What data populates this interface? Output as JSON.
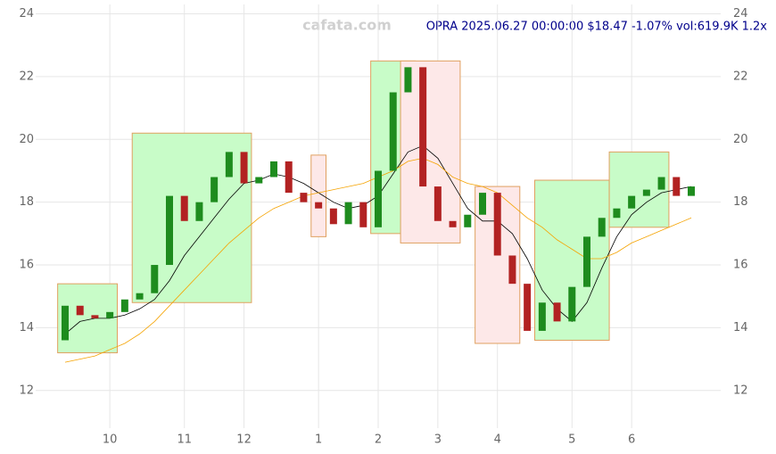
{
  "chart_data": {
    "type": "candlestick",
    "title": "OPRA 2025.06.27 00:00:00 $18.47 -1.07% vol:619.9K 1.2x",
    "watermark": "cafata.com",
    "categories": [
      null,
      null,
      null,
      "10",
      null,
      null,
      null,
      null,
      "11",
      null,
      null,
      null,
      "12",
      null,
      null,
      null,
      null,
      "1",
      null,
      null,
      null,
      "2",
      null,
      null,
      null,
      "3",
      null,
      null,
      null,
      "4",
      null,
      null,
      null,
      null,
      "5",
      null,
      null,
      null,
      "6",
      null,
      null,
      null,
      null
    ],
    "open": [
      13.6,
      14.7,
      14.4,
      14.3,
      14.5,
      14.9,
      15.1,
      16.0,
      18.2,
      17.4,
      18.0,
      18.8,
      19.6,
      18.6,
      18.8,
      19.3,
      18.3,
      18.0,
      17.8,
      17.3,
      18.0,
      17.2,
      19.0,
      21.5,
      22.3,
      18.5,
      17.4,
      17.2,
      17.6,
      18.3,
      16.3,
      15.4,
      13.9,
      14.8,
      14.2,
      15.3,
      16.9,
      17.5,
      17.8,
      18.2,
      18.4,
      18.8,
      18.2
    ],
    "close": [
      14.7,
      14.4,
      14.3,
      14.5,
      14.9,
      15.1,
      16.0,
      18.2,
      17.4,
      18.0,
      18.8,
      19.6,
      18.6,
      18.8,
      19.3,
      18.3,
      18.0,
      17.8,
      17.3,
      18.0,
      17.2,
      19.0,
      21.5,
      22.3,
      18.5,
      17.4,
      17.2,
      17.6,
      18.3,
      16.3,
      15.4,
      13.9,
      14.8,
      14.2,
      15.3,
      16.9,
      17.5,
      17.8,
      18.2,
      18.4,
      18.8,
      18.2,
      18.5
    ],
    "up_color": "#1e8c1e",
    "down_color": "#b22222",
    "series": [
      {
        "color": "#000000",
        "values": [
          13.8,
          14.2,
          14.3,
          14.3,
          14.4,
          14.6,
          14.9,
          15.5,
          16.3,
          16.9,
          17.5,
          18.1,
          18.6,
          18.7,
          18.9,
          18.8,
          18.6,
          18.3,
          18.0,
          17.8,
          17.9,
          18.2,
          18.9,
          19.6,
          19.8,
          19.4,
          18.6,
          17.8,
          17.4,
          17.4,
          17.0,
          16.2,
          15.2,
          14.6,
          14.2,
          14.8,
          15.9,
          16.9,
          17.6,
          18.0,
          18.3,
          18.4,
          18.5
        ]
      },
      {
        "color": "#f5a300",
        "values": [
          12.9,
          13.0,
          13.1,
          13.3,
          13.5,
          13.8,
          14.2,
          14.7,
          15.2,
          15.7,
          16.2,
          16.7,
          17.1,
          17.5,
          17.8,
          18.0,
          18.2,
          18.3,
          18.4,
          18.5,
          18.6,
          18.8,
          19.0,
          19.3,
          19.4,
          19.2,
          18.8,
          18.6,
          18.5,
          18.3,
          17.9,
          17.5,
          17.2,
          16.8,
          16.5,
          16.2,
          16.2,
          16.4,
          16.7,
          16.9,
          17.1,
          17.3,
          17.5
        ]
      }
    ],
    "zones": [
      {
        "start": 0,
        "end": 3,
        "low": 13.2,
        "high": 15.4,
        "color": "#c8fcc8"
      },
      {
        "start": 5,
        "end": 12,
        "low": 14.8,
        "high": 20.2,
        "color": "#c8fcc8"
      },
      {
        "start": 17,
        "end": 17,
        "low": 16.9,
        "high": 19.5,
        "color": "#fde8e8"
      },
      {
        "start": 21,
        "end": 23,
        "low": 17.0,
        "high": 22.5,
        "color": "#c8fcc8"
      },
      {
        "start": 23,
        "end": 26,
        "low": 16.7,
        "high": 22.5,
        "color": "#fde8e8"
      },
      {
        "start": 28,
        "end": 30,
        "low": 13.5,
        "high": 18.5,
        "color": "#fde8e8"
      },
      {
        "start": 32,
        "end": 36,
        "low": 13.6,
        "high": 18.7,
        "color": "#c8fcc8"
      },
      {
        "start": 37,
        "end": 40,
        "low": 17.2,
        "high": 19.6,
        "color": "#c8fcc8"
      }
    ],
    "ylim": [
      10.8,
      24.3
    ],
    "yticks": [
      12,
      14,
      16,
      18,
      20,
      22,
      24
    ],
    "grid": true
  }
}
